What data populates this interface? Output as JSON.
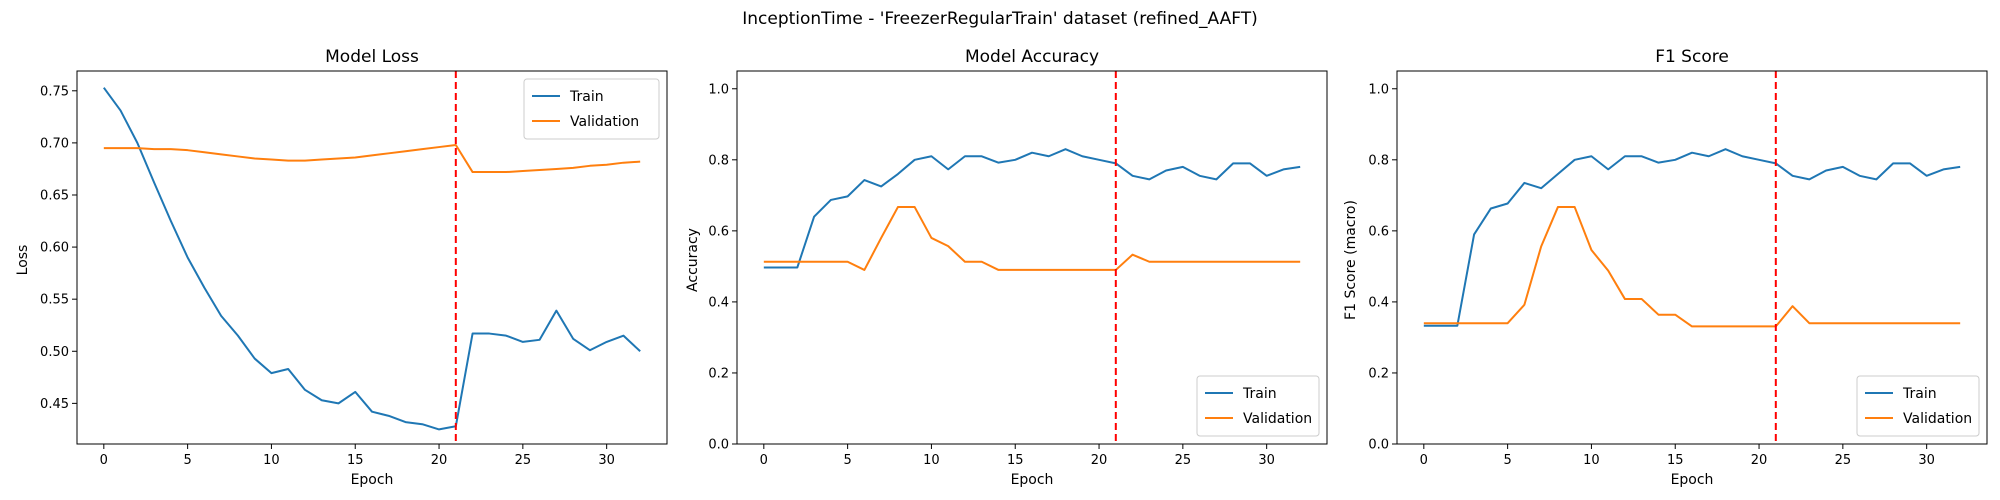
{
  "figure": {
    "suptitle": "InceptionTime - 'FreezerRegularTrain' dataset (refined_AAFT)"
  },
  "colors": {
    "train": "#1f77b4",
    "validation": "#ff7f0e",
    "marker": "#ff0000"
  },
  "chart_data": [
    {
      "type": "line",
      "title": "Model Loss",
      "xlabel": "Epoch",
      "ylabel": "Loss",
      "xlim": [
        -1.6,
        33.6
      ],
      "ylim": [
        0.411,
        0.769
      ],
      "xticks": [
        0,
        5,
        10,
        15,
        20,
        25,
        30
      ],
      "yticks": [
        0.45,
        0.5,
        0.55,
        0.6,
        0.65,
        0.7,
        0.75
      ],
      "ytick_labels": [
        "0.45",
        "0.50",
        "0.55",
        "0.60",
        "0.65",
        "0.70",
        "0.75"
      ],
      "vline_x": 21,
      "legend_position": "upper right",
      "grid": false,
      "x": [
        0,
        1,
        2,
        3,
        4,
        5,
        6,
        7,
        8,
        9,
        10,
        11,
        12,
        13,
        14,
        15,
        16,
        17,
        18,
        19,
        20,
        21,
        22,
        23,
        24,
        25,
        26,
        27,
        28,
        29,
        30,
        31,
        32
      ],
      "series": [
        {
          "name": "Train",
          "color": "#1f77b4",
          "values": [
            0.753,
            0.731,
            0.7,
            0.662,
            0.625,
            0.59,
            0.561,
            0.534,
            0.515,
            0.493,
            0.479,
            0.483,
            0.463,
            0.453,
            0.45,
            0.461,
            0.442,
            0.438,
            0.432,
            0.43,
            0.425,
            0.428,
            0.517,
            0.517,
            0.515,
            0.509,
            0.511,
            0.539,
            0.512,
            0.501,
            0.509,
            0.515,
            0.5
          ]
        },
        {
          "name": "Validation",
          "color": "#ff7f0e",
          "values": [
            0.695,
            0.695,
            0.695,
            0.694,
            0.694,
            0.693,
            0.691,
            0.689,
            0.687,
            0.685,
            0.684,
            0.683,
            0.683,
            0.684,
            0.685,
            0.686,
            0.688,
            0.69,
            0.692,
            0.694,
            0.696,
            0.698,
            0.672,
            0.672,
            0.672,
            0.673,
            0.674,
            0.675,
            0.676,
            0.678,
            0.679,
            0.681,
            0.682
          ]
        }
      ]
    },
    {
      "type": "line",
      "title": "Model Accuracy",
      "xlabel": "Epoch",
      "ylabel": "Accuracy",
      "xlim": [
        -1.6,
        33.6
      ],
      "ylim": [
        0.0,
        1.05
      ],
      "xticks": [
        0,
        5,
        10,
        15,
        20,
        25,
        30
      ],
      "yticks": [
        0.0,
        0.2,
        0.4,
        0.6,
        0.8,
        1.0
      ],
      "ytick_labels": [
        "0.0",
        "0.2",
        "0.4",
        "0.6",
        "0.8",
        "1.0"
      ],
      "vline_x": 21,
      "legend_position": "lower right",
      "grid": false,
      "x": [
        0,
        1,
        2,
        3,
        4,
        5,
        6,
        7,
        8,
        9,
        10,
        11,
        12,
        13,
        14,
        15,
        16,
        17,
        18,
        19,
        20,
        21,
        22,
        23,
        24,
        25,
        26,
        27,
        28,
        29,
        30,
        31,
        32
      ],
      "series": [
        {
          "name": "Train",
          "color": "#1f77b4",
          "values": [
            0.497,
            0.497,
            0.497,
            0.64,
            0.687,
            0.697,
            0.743,
            0.725,
            0.76,
            0.8,
            0.81,
            0.773,
            0.81,
            0.81,
            0.792,
            0.8,
            0.82,
            0.81,
            0.83,
            0.81,
            0.8,
            0.79,
            0.755,
            0.745,
            0.77,
            0.78,
            0.755,
            0.745,
            0.79,
            0.79,
            0.755,
            0.773,
            0.78
          ]
        },
        {
          "name": "Validation",
          "color": "#ff7f0e",
          "values": [
            0.513,
            0.513,
            0.513,
            0.513,
            0.513,
            0.513,
            0.49,
            0.58,
            0.667,
            0.667,
            0.58,
            0.557,
            0.513,
            0.513,
            0.49,
            0.49,
            0.49,
            0.49,
            0.49,
            0.49,
            0.49,
            0.49,
            0.533,
            0.513,
            0.513,
            0.513,
            0.513,
            0.513,
            0.513,
            0.513,
            0.513,
            0.513,
            0.513
          ]
        }
      ]
    },
    {
      "type": "line",
      "title": "F1 Score",
      "xlabel": "Epoch",
      "ylabel": "F1 Score (macro)",
      "xlim": [
        -1.6,
        33.6
      ],
      "ylim": [
        0.0,
        1.05
      ],
      "xticks": [
        0,
        5,
        10,
        15,
        20,
        25,
        30
      ],
      "yticks": [
        0.0,
        0.2,
        0.4,
        0.6,
        0.8,
        1.0
      ],
      "ytick_labels": [
        "0.0",
        "0.2",
        "0.4",
        "0.6",
        "0.8",
        "1.0"
      ],
      "vline_x": 21,
      "legend_position": "lower right",
      "grid": false,
      "x": [
        0,
        1,
        2,
        3,
        4,
        5,
        6,
        7,
        8,
        9,
        10,
        11,
        12,
        13,
        14,
        15,
        16,
        17,
        18,
        19,
        20,
        21,
        22,
        23,
        24,
        25,
        26,
        27,
        28,
        29,
        30,
        31,
        32
      ],
      "series": [
        {
          "name": "Train",
          "color": "#1f77b4",
          "values": [
            0.333,
            0.333,
            0.333,
            0.59,
            0.663,
            0.677,
            0.735,
            0.72,
            0.76,
            0.8,
            0.81,
            0.773,
            0.81,
            0.81,
            0.792,
            0.8,
            0.82,
            0.81,
            0.83,
            0.81,
            0.8,
            0.79,
            0.755,
            0.745,
            0.77,
            0.78,
            0.755,
            0.745,
            0.79,
            0.79,
            0.755,
            0.773,
            0.78
          ]
        },
        {
          "name": "Validation",
          "color": "#ff7f0e",
          "values": [
            0.34,
            0.34,
            0.34,
            0.34,
            0.34,
            0.34,
            0.392,
            0.556,
            0.667,
            0.667,
            0.546,
            0.488,
            0.408,
            0.408,
            0.364,
            0.364,
            0.331,
            0.331,
            0.331,
            0.331,
            0.331,
            0.331,
            0.388,
            0.34,
            0.34,
            0.34,
            0.34,
            0.34,
            0.34,
            0.34,
            0.34,
            0.34,
            0.34
          ]
        }
      ]
    }
  ]
}
